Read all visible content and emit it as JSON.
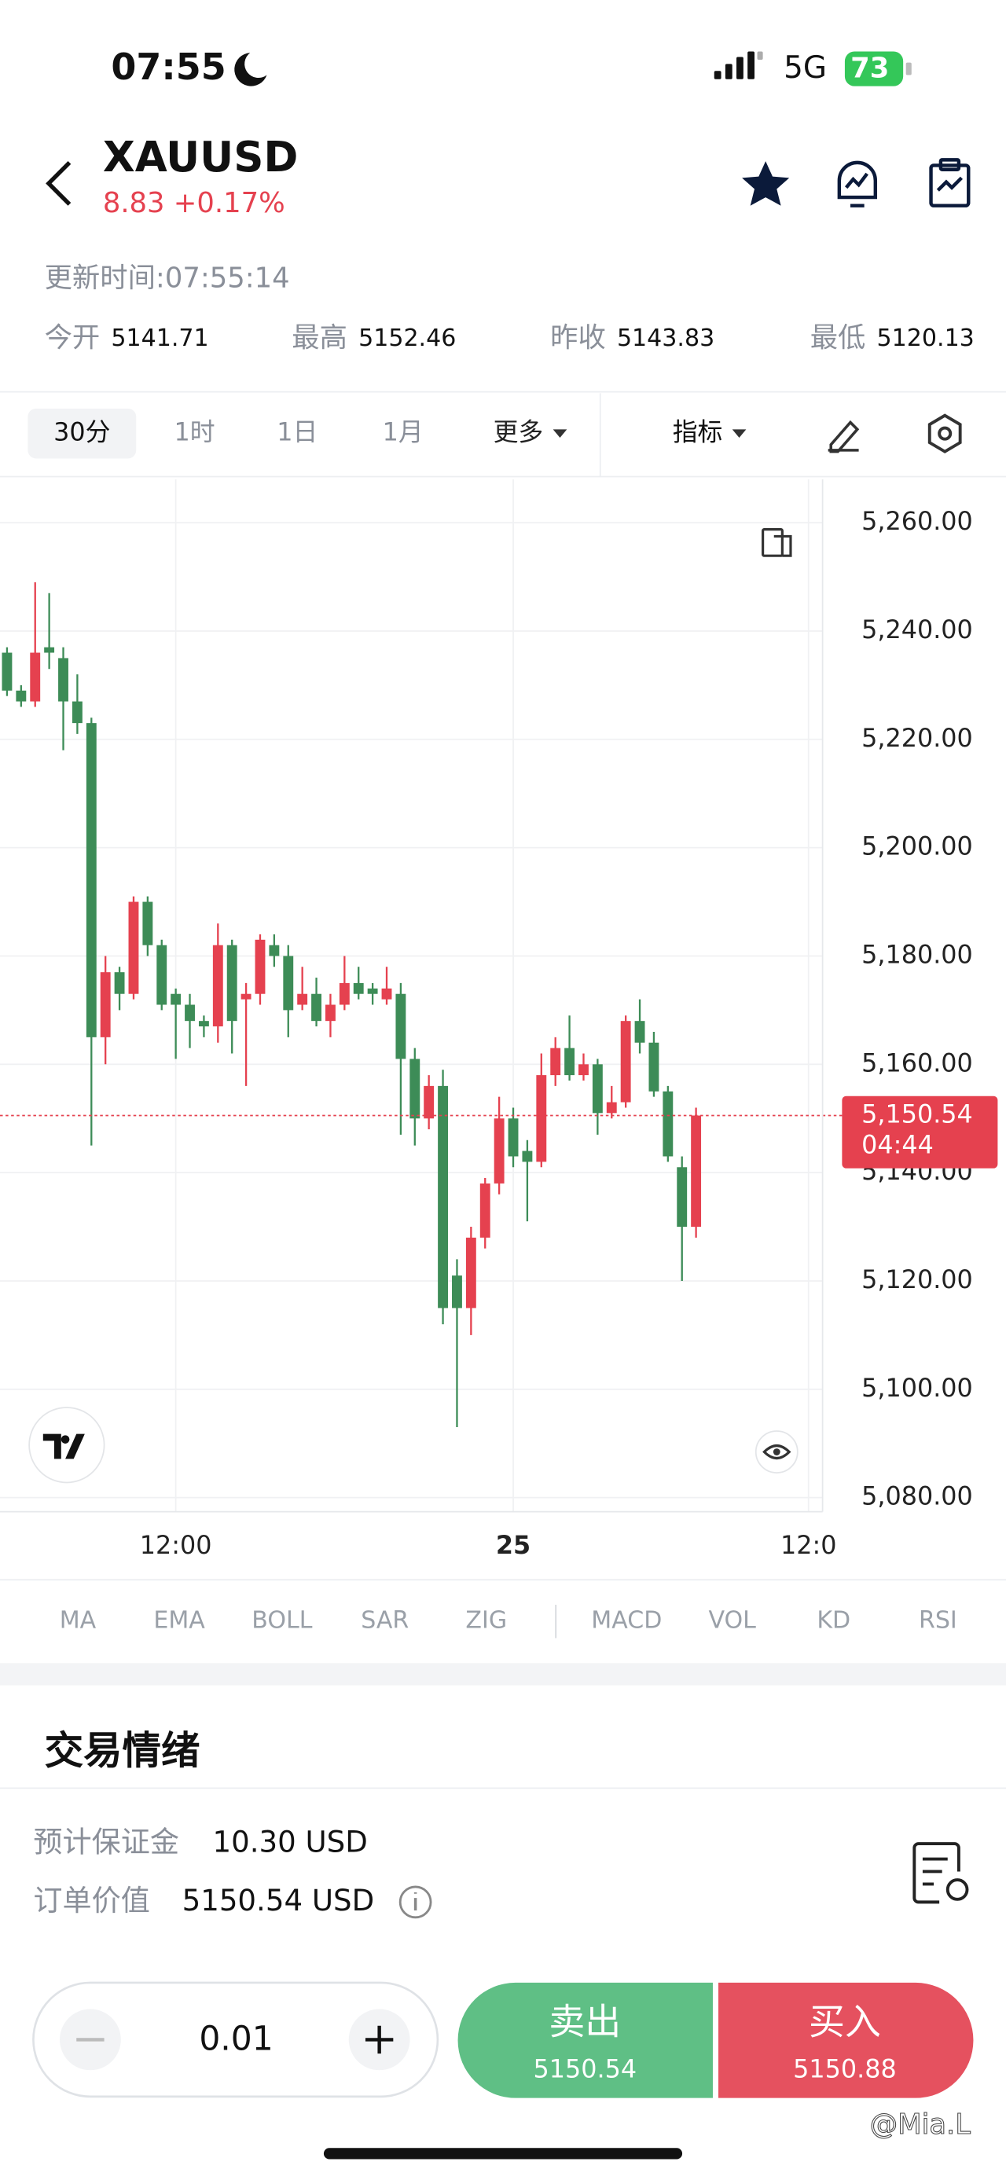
{
  "status": {
    "time": "07:55",
    "network": "5G",
    "battery": "73"
  },
  "header": {
    "symbol": "XAUUSD",
    "change": "8.83 +0.17%",
    "updated": "更新时间:07:55:14",
    "stats": [
      {
        "label": "今开",
        "value": "5141.71"
      },
      {
        "label": "最高",
        "value": "5152.46"
      },
      {
        "label": "昨收",
        "value": "5143.83"
      },
      {
        "label": "最低",
        "value": "5120.13"
      }
    ]
  },
  "toolbar": {
    "timeframes": [
      "30分",
      "1时",
      "1日",
      "1月",
      "更多"
    ],
    "indicators": "指标"
  },
  "chart_data": {
    "type": "candlestick",
    "xlim": [
      -0.5,
      58
    ],
    "xticks": [
      {
        "value": 12,
        "label": "12:00"
      },
      {
        "value": 36,
        "label": "25"
      },
      {
        "value": 57,
        "label": "12:0"
      }
    ],
    "ylim": [
      5077.4,
      5268
    ],
    "yticks": [
      {
        "value": 5260,
        "label": "5,260.00"
      },
      {
        "value": 5240,
        "label": "5,240.00"
      },
      {
        "value": 5220,
        "label": "5,220.00"
      },
      {
        "value": 5200,
        "label": "5,200.00"
      },
      {
        "value": 5180,
        "label": "5,180.00"
      },
      {
        "value": 5160,
        "label": "5,160.00"
      },
      {
        "value": 5140,
        "label": "5,140.00"
      },
      {
        "value": 5120,
        "label": "5,120.00"
      },
      {
        "value": 5100,
        "label": "5,100.00"
      },
      {
        "value": 5080,
        "label": "5,080.00"
      }
    ],
    "grid": true,
    "up_color": "#e5414f",
    "down_color": "#3d8c57",
    "open": [
      5236,
      5229,
      5227,
      5237,
      5235,
      5227,
      5223,
      5165,
      5177,
      5173,
      5190,
      5182,
      5173,
      5171,
      5168,
      5167,
      5182,
      5172,
      5173,
      5182,
      5180,
      5171,
      5173,
      5168,
      5171,
      5175,
      5174,
      5172,
      5173,
      5161,
      5150,
      5156,
      5121,
      5115,
      5128,
      5138,
      5150,
      5144,
      5142,
      5158,
      5163,
      5158,
      5160,
      5151,
      5153,
      5168,
      5164,
      5155,
      5141,
      5130
    ],
    "high": [
      5237,
      5230,
      5249,
      5247,
      5237,
      5232,
      5224,
      5180,
      5178,
      5191,
      5191,
      5183,
      5174,
      5173,
      5169,
      5186,
      5183,
      5175,
      5184,
      5184,
      5182,
      5178,
      5176,
      5173,
      5180,
      5178,
      5175,
      5178,
      5175,
      5163,
      5158,
      5159,
      5124,
      5130,
      5139,
      5154,
      5152,
      5146,
      5162,
      5165,
      5169,
      5162,
      5161,
      5156,
      5169,
      5172,
      5166,
      5156,
      5143,
      5152
    ],
    "low": [
      5228,
      5226,
      5226,
      5233,
      5218,
      5221,
      5145,
      5160,
      5170,
      5172,
      5180,
      5170,
      5161,
      5163,
      5165,
      5164,
      5162,
      5156,
      5171,
      5178,
      5165,
      5170,
      5167,
      5165,
      5170,
      5172,
      5171,
      5171,
      5147,
      5145,
      5148,
      5112,
      5093,
      5110,
      5126,
      5136,
      5141,
      5131,
      5141,
      5156,
      5157,
      5157,
      5147,
      5150,
      5152,
      5162,
      5154,
      5142,
      5120,
      5128
    ],
    "close": [
      5229,
      5227,
      5236,
      5236,
      5227,
      5223,
      5165,
      5177,
      5173,
      5190,
      5182,
      5171,
      5171,
      5168,
      5167,
      5182,
      5168,
      5173,
      5183,
      5180,
      5170,
      5173,
      5168,
      5171,
      5175,
      5173,
      5173,
      5174,
      5161,
      5150,
      5156,
      5115,
      5115,
      5128,
      5138,
      5150,
      5143,
      5142,
      5158,
      5163,
      5158,
      5160,
      5151,
      5153,
      5168,
      5164,
      5155,
      5143,
      5130,
      5150.54
    ],
    "last_price": {
      "value": 5150.54,
      "label": "5,150.54"
    },
    "countdown": "04:44"
  },
  "indicator_tabs": {
    "main": [
      "MA",
      "EMA",
      "BOLL",
      "SAR",
      "ZIG"
    ],
    "sub": [
      "MACD",
      "VOL",
      "KD",
      "RSI"
    ]
  },
  "sentiment": {
    "title": "交易情绪"
  },
  "order": {
    "margin_label": "预计保证金",
    "margin_value": "10.30 USD",
    "value_label": "订单价值",
    "value_value": "5150.54 USD",
    "quantity": "0.01",
    "sell_label": "卖出",
    "sell_price": "5150.54",
    "buy_label": "买入",
    "buy_price": "5150.88"
  },
  "watermark": "@Mia.L"
}
